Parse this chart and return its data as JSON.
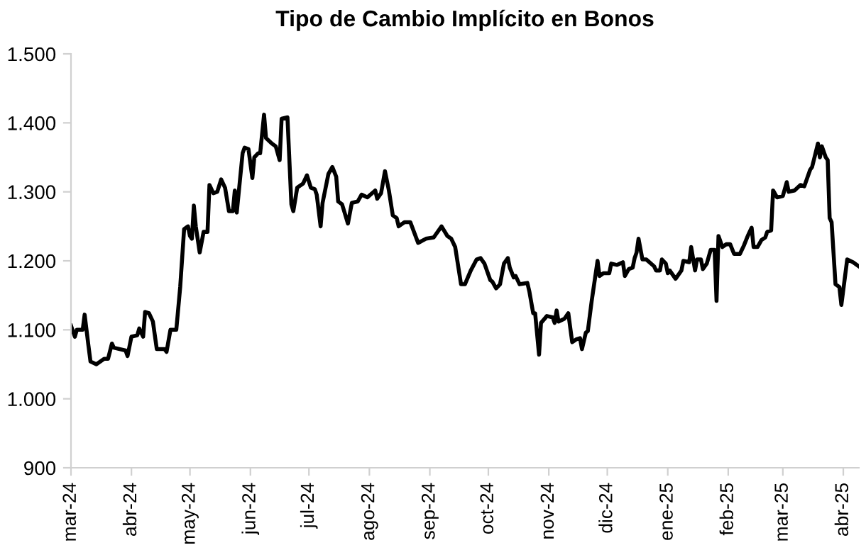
{
  "chart_data": {
    "type": "line",
    "title": "Tipo de Cambio Implícito en Bonos",
    "x": [
      "2024-03-01",
      "2024-03-03",
      "2024-03-04",
      "2024-03-07",
      "2024-03-08",
      "2024-03-10",
      "2024-03-11",
      "2024-03-14",
      "2024-03-18",
      "2024-03-20",
      "2024-03-22",
      "2024-03-23",
      "2024-03-29",
      "2024-03-30",
      "2024-04-01",
      "2024-04-04",
      "2024-04-05",
      "2024-04-07",
      "2024-04-08",
      "2024-04-10",
      "2024-04-12",
      "2024-04-14",
      "2024-04-18",
      "2024-04-19",
      "2024-04-21",
      "2024-04-24",
      "2024-04-26",
      "2024-04-28",
      "2024-04-30",
      "2024-05-01",
      "2024-05-02",
      "2024-05-03",
      "2024-05-04",
      "2024-05-06",
      "2024-05-08",
      "2024-05-10",
      "2024-05-11",
      "2024-05-13",
      "2024-05-15",
      "2024-05-17",
      "2024-05-19",
      "2024-05-21",
      "2024-05-23",
      "2024-05-24",
      "2024-05-25",
      "2024-05-28",
      "2024-05-29",
      "2024-05-31",
      "2024-06-02",
      "2024-06-03",
      "2024-06-05",
      "2024-06-06",
      "2024-06-08",
      "2024-06-09",
      "2024-06-12",
      "2024-06-14",
      "2024-06-16",
      "2024-06-17",
      "2024-06-20",
      "2024-06-22",
      "2024-06-23",
      "2024-06-25",
      "2024-06-28",
      "2024-06-30",
      "2024-07-02",
      "2024-07-04",
      "2024-07-05",
      "2024-07-07",
      "2024-07-08",
      "2024-07-11",
      "2024-07-13",
      "2024-07-15",
      "2024-07-16",
      "2024-07-18",
      "2024-07-21",
      "2024-07-23",
      "2024-07-26",
      "2024-07-28",
      "2024-07-31",
      "2024-08-04",
      "2024-08-05",
      "2024-08-07",
      "2024-08-09",
      "2024-08-11",
      "2024-08-13",
      "2024-08-15",
      "2024-08-16",
      "2024-08-19",
      "2024-08-22",
      "2024-08-26",
      "2024-08-30",
      "2024-09-03",
      "2024-09-04",
      "2024-09-07",
      "2024-09-10",
      "2024-09-12",
      "2024-09-14",
      "2024-09-17",
      "2024-09-19",
      "2024-09-22",
      "2024-09-25",
      "2024-09-27",
      "2024-09-29",
      "2024-10-02",
      "2024-10-03",
      "2024-10-05",
      "2024-10-07",
      "2024-10-09",
      "2024-10-11",
      "2024-10-12",
      "2024-10-14",
      "2024-10-15",
      "2024-10-17",
      "2024-10-21",
      "2024-10-22",
      "2024-10-24",
      "2024-10-25",
      "2024-10-27",
      "2024-10-28",
      "2024-10-31",
      "2024-11-03",
      "2024-11-04",
      "2024-11-05",
      "2024-11-06",
      "2024-11-09",
      "2024-11-11",
      "2024-11-13",
      "2024-11-15",
      "2024-11-17",
      "2024-11-18",
      "2024-11-20",
      "2024-11-21",
      "2024-11-23",
      "2024-11-26",
      "2024-11-27",
      "2024-11-29",
      "2024-12-02",
      "2024-12-03",
      "2024-12-06",
      "2024-12-09",
      "2024-12-10",
      "2024-12-12",
      "2024-12-14",
      "2024-12-15",
      "2024-12-16",
      "2024-12-17",
      "2024-12-19",
      "2024-12-21",
      "2024-12-25",
      "2024-12-26",
      "2024-12-28",
      "2024-12-29",
      "2024-12-31",
      "2025-01-01",
      "2025-01-02",
      "2025-01-05",
      "2025-01-08",
      "2025-01-09",
      "2025-01-12",
      "2025-01-13",
      "2025-01-15",
      "2025-01-16",
      "2025-01-18",
      "2025-01-19",
      "2025-01-21",
      "2025-01-23",
      "2025-01-25",
      "2025-01-26",
      "2025-01-27",
      "2025-01-29",
      "2025-01-31",
      "2025-02-02",
      "2025-02-04",
      "2025-02-07",
      "2025-02-09",
      "2025-02-11",
      "2025-02-13",
      "2025-02-14",
      "2025-02-16",
      "2025-02-18",
      "2025-02-20",
      "2025-02-21",
      "2025-02-23",
      "2025-02-24",
      "2025-02-26",
      "2025-03-01",
      "2025-03-03",
      "2025-03-04",
      "2025-03-07",
      "2025-03-10",
      "2025-03-12",
      "2025-03-15",
      "2025-03-16",
      "2025-03-19",
      "2025-03-20",
      "2025-03-21",
      "2025-03-23",
      "2025-03-24",
      "2025-03-25",
      "2025-03-26",
      "2025-03-28",
      "2025-03-30",
      "2025-03-31",
      "2025-04-03",
      "2025-04-06",
      "2025-04-09"
    ],
    "series": [
      {
        "color": "#000000",
        "values": [
          1106,
          1090,
          1100,
          1100,
          1122,
          1076,
          1054,
          1050,
          1058,
          1058,
          1080,
          1074,
          1070,
          1062,
          1090,
          1092,
          1102,
          1090,
          1126,
          1124,
          1112,
          1072,
          1072,
          1068,
          1100,
          1100,
          1162,
          1246,
          1250,
          1236,
          1232,
          1280,
          1250,
          1212,
          1242,
          1242,
          1310,
          1298,
          1300,
          1318,
          1306,
          1272,
          1272,
          1302,
          1270,
          1356,
          1364,
          1362,
          1320,
          1350,
          1356,
          1356,
          1412,
          1378,
          1370,
          1366,
          1346,
          1406,
          1408,
          1282,
          1272,
          1306,
          1312,
          1324,
          1306,
          1304,
          1296,
          1250,
          1284,
          1326,
          1336,
          1322,
          1286,
          1282,
          1254,
          1284,
          1286,
          1296,
          1292,
          1302,
          1290,
          1298,
          1330,
          1302,
          1266,
          1262,
          1250,
          1256,
          1256,
          1226,
          1232,
          1234,
          1238,
          1250,
          1236,
          1232,
          1220,
          1166,
          1166,
          1186,
          1202,
          1204,
          1196,
          1172,
          1170,
          1160,
          1166,
          1196,
          1204,
          1190,
          1176,
          1178,
          1166,
          1168,
          1156,
          1124,
          1124,
          1064,
          1110,
          1120,
          1118,
          1110,
          1128,
          1112,
          1116,
          1124,
          1082,
          1086,
          1088,
          1072,
          1096,
          1098,
          1142,
          1200,
          1178,
          1182,
          1182,
          1196,
          1194,
          1198,
          1178,
          1188,
          1190,
          1204,
          1212,
          1232,
          1202,
          1202,
          1192,
          1186,
          1186,
          1202,
          1196,
          1182,
          1186,
          1174,
          1186,
          1200,
          1198,
          1220,
          1186,
          1202,
          1202,
          1188,
          1196,
          1216,
          1216,
          1142,
          1236,
          1220,
          1224,
          1224,
          1210,
          1210,
          1222,
          1236,
          1248,
          1220,
          1220,
          1230,
          1234,
          1242,
          1244,
          1302,
          1292,
          1294,
          1314,
          1300,
          1302,
          1310,
          1308,
          1332,
          1336,
          1370,
          1350,
          1366,
          1350,
          1346,
          1262,
          1256,
          1166,
          1162,
          1136,
          1202,
          1198,
          1192
        ]
      }
    ],
    "xlim": [
      "2024-03-01",
      "2025-04-09"
    ],
    "xticks": [
      {
        "value": "2024-03-01",
        "label": "mar-24"
      },
      {
        "value": "2024-04-01",
        "label": "abr-24"
      },
      {
        "value": "2024-05-01",
        "label": "may-24"
      },
      {
        "value": "2024-06-01",
        "label": "jun-24"
      },
      {
        "value": "2024-07-01",
        "label": "jul-24"
      },
      {
        "value": "2024-08-01",
        "label": "ago-24"
      },
      {
        "value": "2024-09-01",
        "label": "sep-24"
      },
      {
        "value": "2024-10-01",
        "label": "oct-24"
      },
      {
        "value": "2024-11-01",
        "label": "nov-24"
      },
      {
        "value": "2024-12-01",
        "label": "dic-24"
      },
      {
        "value": "2025-01-01",
        "label": "ene-25"
      },
      {
        "value": "2025-02-01",
        "label": "feb-25"
      },
      {
        "value": "2025-03-01",
        "label": "mar-25"
      },
      {
        "value": "2025-04-01",
        "label": "abr-25"
      }
    ],
    "ylim": [
      900,
      1500
    ],
    "yticks": [
      900,
      {
        "value": 1000,
        "label": "1.000"
      },
      {
        "value": 1100,
        "label": "1.100"
      },
      {
        "value": 1200,
        "label": "1.200"
      },
      {
        "value": 1300,
        "label": "1.300"
      },
      {
        "value": 1400,
        "label": "1.400"
      },
      {
        "value": 1500,
        "label": "1.500"
      }
    ],
    "grid": false,
    "legend": false,
    "marker": "none",
    "line_style": "solid"
  }
}
